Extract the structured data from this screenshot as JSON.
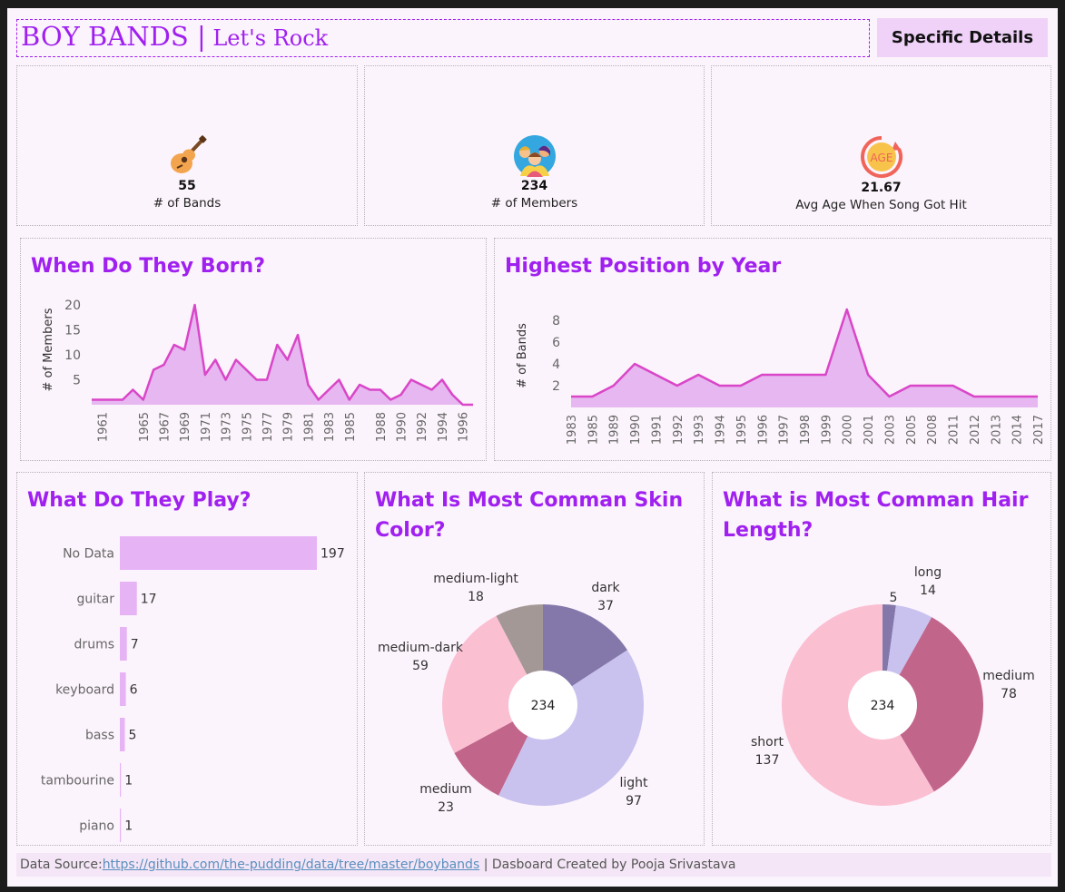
{
  "header": {
    "title_main": "BOY BANDS |",
    "title_sub": " Let's Rock",
    "details_button": "Specific Details"
  },
  "kpis": [
    {
      "value": "55",
      "label": "# of Bands",
      "icon": "guitar-icon"
    },
    {
      "value": "234",
      "label": "# of Members",
      "icon": "people-icon"
    },
    {
      "value": "21.67",
      "label": "Avg Age When Song Got Hit",
      "icon": "age-icon",
      "icon_text": "AGE"
    }
  ],
  "panels": {
    "born_title": "When Do They Born?",
    "position_title": "Highest Position by Year",
    "play_title": "What Do They Play?",
    "skin_title_1": "What Is Most Comman Skin",
    "skin_title_2": "Color?",
    "hair_title_1": "What is Most Comman Hair",
    "hair_title_2": "Length?"
  },
  "footer": {
    "prefix": "Data Source:",
    "link": "https://github.com/the-pudding/data/tree/master/boybands",
    "suffix": " | Dasboard Created by Pooja Srivastava"
  },
  "colors": {
    "accent": "#a020f0",
    "area_line": "#d946c8",
    "area_fill": "#e3b0ee",
    "bar": "#e6b3f5"
  },
  "chart_data": [
    {
      "type": "area",
      "title": "When Do They Born?",
      "ylabel": "# of Members",
      "ylim": [
        0,
        22
      ],
      "yticks": [
        5,
        10,
        15,
        20
      ],
      "x": [
        1960,
        1961,
        1962,
        1963,
        1964,
        1965,
        1966,
        1967,
        1968,
        1969,
        1970,
        1971,
        1972,
        1973,
        1974,
        1975,
        1976,
        1977,
        1978,
        1979,
        1980,
        1981,
        1982,
        1983,
        1984,
        1985,
        1986,
        1987,
        1988,
        1989,
        1990,
        1991,
        1992,
        1993,
        1994,
        1995,
        1996,
        1997
      ],
      "values": [
        1,
        1,
        1,
        1,
        3,
        1,
        7,
        8,
        12,
        11,
        20,
        6,
        9,
        5,
        9,
        7,
        5,
        5,
        12,
        9,
        14,
        4,
        1,
        3,
        5,
        1,
        4,
        3,
        3,
        1,
        2,
        5,
        4,
        3,
        5,
        2,
        0,
        0
      ],
      "xtick_labels": [
        "1961",
        "1965",
        "1967",
        "1969",
        "1971",
        "1973",
        "1975",
        "1977",
        "1979",
        "1981",
        "1983",
        "1985",
        "1988",
        "1990",
        "1992",
        "1994",
        "1996"
      ]
    },
    {
      "type": "area",
      "title": "Highest Position by Year",
      "ylabel": "# of Bands",
      "ylim": [
        0,
        9.5
      ],
      "yticks": [
        2,
        4,
        6,
        8
      ],
      "categories": [
        "1983",
        "1985",
        "1989",
        "1990",
        "1991",
        "1992",
        "1993",
        "1994",
        "1995",
        "1996",
        "1997",
        "1998",
        "1999",
        "2000",
        "2001",
        "2003",
        "2005",
        "2008",
        "2011",
        "2012",
        "2013",
        "2014",
        "2017"
      ],
      "values": [
        1,
        1,
        2,
        4,
        3,
        2,
        3,
        2,
        2,
        3,
        3,
        3,
        3,
        9,
        3,
        1,
        2,
        2,
        2,
        1,
        1,
        1,
        1
      ]
    },
    {
      "type": "bar",
      "title": "What Do They Play?",
      "categories": [
        "No Data",
        "guitar",
        "drums",
        "keyboard",
        "bass",
        "tambourine",
        "piano"
      ],
      "values": [
        197,
        17,
        7,
        6,
        5,
        1,
        1
      ]
    },
    {
      "type": "pie",
      "title": "What Is Most Comman Skin Color?",
      "total": "234",
      "slices": [
        {
          "label": "dark",
          "value": 37,
          "color": "#8478aa"
        },
        {
          "label": "light",
          "value": 97,
          "color": "#c9c2ef"
        },
        {
          "label": "medium",
          "value": 23,
          "color": "#c2658a"
        },
        {
          "label": "medium-dark",
          "value": 59,
          "color": "#fbbfd2"
        },
        {
          "label": "medium-light",
          "value": 18,
          "color": "#a49897"
        }
      ]
    },
    {
      "type": "pie",
      "title": "What is Most Comman Hair Length?",
      "total": "234",
      "slices": [
        {
          "label": "",
          "value": 5,
          "color": "#8478aa"
        },
        {
          "label": "long",
          "value": 14,
          "color": "#c9c2ef"
        },
        {
          "label": "medium",
          "value": 78,
          "color": "#c2658a"
        },
        {
          "label": "short",
          "value": 137,
          "color": "#fbbfd2"
        }
      ]
    }
  ]
}
